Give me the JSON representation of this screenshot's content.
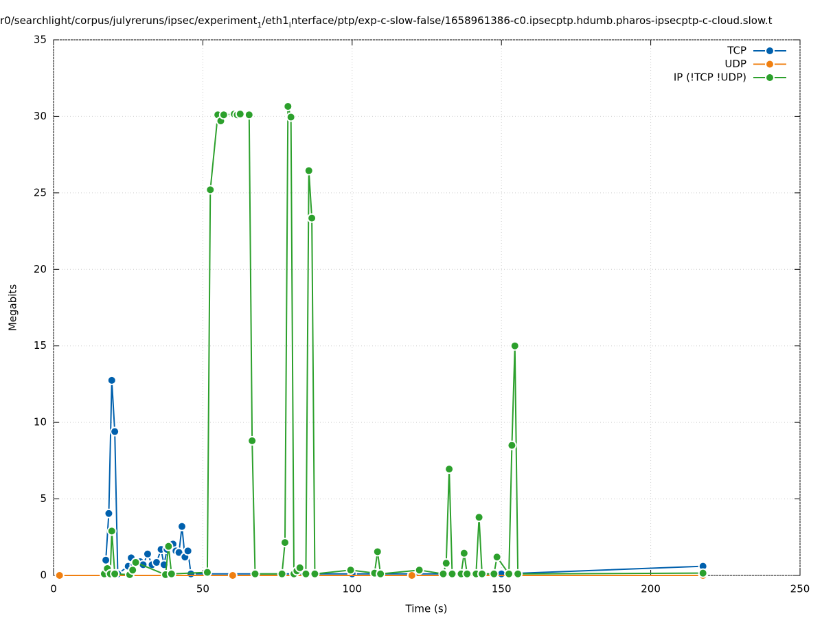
{
  "chart_data": {
    "type": "line",
    "title_parts": [
      "r0/searchlight/corpus/julyreruns/ipsec/experiment",
      "1",
      "/eth1",
      "i",
      "nterface/ptp/exp-c-slow-false/1658961386-c0.ipsecptp.hdumb.pharos-ipsecptp-c-cloud.slow.t"
    ],
    "x_label": "Time (s)",
    "y_label": "Megabits",
    "xlim": [
      0,
      250
    ],
    "xticks": [
      0,
      50,
      100,
      150,
      200,
      250
    ],
    "ylim": [
      0,
      35
    ],
    "yticks": [
      0,
      5,
      10,
      15,
      20,
      25,
      30,
      35
    ],
    "grid": true,
    "legend": "top-right",
    "series": [
      {
        "name": "TCP",
        "color": "#0060ad",
        "x": [
          17.5,
          18.5,
          19.5,
          20.5,
          21.5,
          25,
          26,
          27,
          29,
          30,
          31.5,
          33,
          34.5,
          36,
          37,
          38,
          40,
          41,
          42,
          43,
          44,
          45,
          46,
          100,
          150,
          217.5
        ],
        "values": [
          1.0,
          4.05,
          12.75,
          9.4,
          0.1,
          0.6,
          1.15,
          0.7,
          0.9,
          0.7,
          1.4,
          0.7,
          0.85,
          1.7,
          0.7,
          1.7,
          2.05,
          1.6,
          1.5,
          3.2,
          1.2,
          1.6,
          0.1,
          0.1,
          0.1,
          0.6
        ]
      },
      {
        "name": "UDP",
        "color": "#f07f10",
        "x": [
          2,
          60,
          120,
          217.5
        ],
        "values": [
          0,
          0,
          0,
          0
        ]
      },
      {
        "name": "IP (!TCP  !UDP)",
        "color": "#2ca02c",
        "x": [
          17,
          18,
          19,
          19.5,
          20.5,
          25.5,
          26.5,
          27.5,
          37.5,
          38.5,
          39.5,
          51.5,
          52.5,
          55,
          56,
          57,
          60.5,
          61.5,
          62.5,
          65.5,
          66.5,
          67.5,
          76.5,
          77.5,
          78.5,
          79.5,
          80.5,
          81.5,
          82.5,
          84.5,
          85.5,
          86.5,
          87.5,
          99.5,
          107.5,
          108.5,
          109.5,
          122.5,
          130.5,
          131.5,
          132.5,
          133.5,
          136.5,
          137.5,
          138.5,
          141.5,
          142.5,
          143.5,
          147.5,
          148.5,
          152.5,
          153.5,
          154.5,
          155.5,
          217.5
        ],
        "values": [
          0.1,
          0.45,
          0.1,
          2.9,
          0.1,
          0.05,
          0.35,
          0.85,
          0.05,
          1.9,
          0.1,
          0.2,
          25.2,
          30.1,
          29.7,
          30.1,
          30.15,
          30.1,
          30.15,
          30.1,
          8.8,
          0.1,
          0.1,
          2.15,
          30.65,
          29.95,
          0.1,
          0.3,
          0.5,
          0.1,
          26.45,
          23.35,
          0.1,
          0.35,
          0.15,
          1.55,
          0.1,
          0.35,
          0.1,
          0.8,
          6.95,
          0.1,
          0.1,
          1.45,
          0.1,
          0.1,
          3.8,
          0.1,
          0.1,
          1.2,
          0.1,
          8.5,
          15.0,
          0.1,
          0.15
        ]
      }
    ]
  }
}
